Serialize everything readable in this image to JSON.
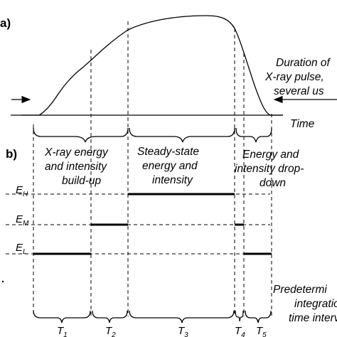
{
  "panels": {
    "a": "a)",
    "b": "b)"
  },
  "pulse_annotation": {
    "line1": "Duration of",
    "line2": "X-ray pulse,",
    "line3": "several us"
  },
  "time_label": "Time",
  "phases": {
    "buildup": {
      "line1": "X-ray energy",
      "line2": "and intensity",
      "line3": "build-up"
    },
    "steady": {
      "line1": "Steady-state",
      "line2": "energy and",
      "line3": "intensity"
    },
    "dropdown": {
      "line1": "Energy and",
      "line2": "intensity drop-",
      "line3": "down"
    }
  },
  "levels": {
    "high": {
      "main": "E",
      "sub": "H"
    },
    "medium": {
      "main": "E",
      "sub": "M"
    },
    "low": {
      "main": "E",
      "sub": "L"
    }
  },
  "integration_note": {
    "line1": "Predetermi",
    "line2": "integratio",
    "line3": "time interv"
  },
  "intervals": [
    {
      "main": "T",
      "sub": "1"
    },
    {
      "main": "T",
      "sub": "2"
    },
    {
      "main": "T",
      "sub": "3"
    },
    {
      "main": "T",
      "sub": "4"
    },
    {
      "main": "T",
      "sub": "5"
    }
  ]
}
